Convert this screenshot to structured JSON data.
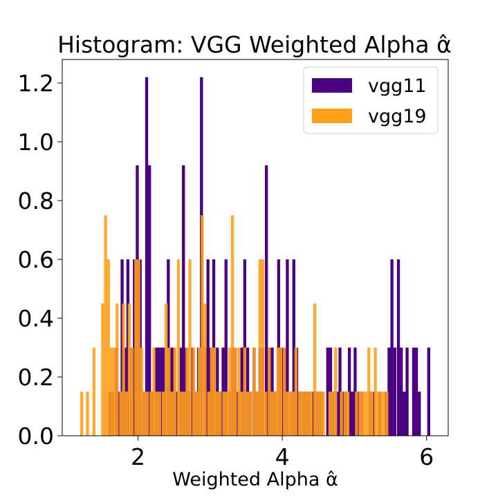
{
  "chart_data": {
    "type": "bar",
    "title": "Histogram: VGG Weighted Alpha α̂",
    "xlabel": "Weighted Alpha α̂",
    "ylabel": "",
    "xlim": [
      0.95,
      6.3
    ],
    "ylim": [
      0,
      1.28
    ],
    "xticks": [
      2,
      4,
      6
    ],
    "yticks": [
      0.0,
      0.2,
      0.4,
      0.6,
      0.8,
      1.0,
      1.2
    ],
    "legend_position": "top-right",
    "series": [
      {
        "name": "vgg11",
        "color": "#4b0082",
        "bars": [
          [
            1.61,
            0.15
          ],
          [
            1.65,
            0.15
          ],
          [
            1.7,
            0.3
          ],
          [
            1.74,
            0.15
          ],
          [
            1.78,
            0.6
          ],
          [
            1.82,
            0.3
          ],
          [
            1.86,
            0.6
          ],
          [
            1.91,
            0.3
          ],
          [
            1.95,
            0.6
          ],
          [
            1.99,
            0.92
          ],
          [
            2.03,
            0.6
          ],
          [
            2.08,
            0.15
          ],
          [
            2.12,
            1.22
          ],
          [
            2.16,
            0.92
          ],
          [
            2.2,
            0.15
          ],
          [
            2.25,
            0.3
          ],
          [
            2.29,
            0.3
          ],
          [
            2.33,
            0.3
          ],
          [
            2.37,
            0.3
          ],
          [
            2.42,
            0.6
          ],
          [
            2.46,
            0.3
          ],
          [
            2.5,
            0.3
          ],
          [
            2.54,
            0.15
          ],
          [
            2.59,
            0.3
          ],
          [
            2.63,
            0.92
          ],
          [
            2.67,
            0.3
          ],
          [
            2.71,
            0.15
          ],
          [
            2.76,
            0.3
          ],
          [
            2.8,
            0.15
          ],
          [
            2.84,
            0.3
          ],
          [
            2.88,
            1.22
          ],
          [
            2.93,
            0.3
          ],
          [
            2.97,
            0.6
          ],
          [
            3.01,
            0.3
          ],
          [
            3.05,
            0.6
          ],
          [
            3.1,
            0.3
          ],
          [
            3.14,
            0.15
          ],
          [
            3.18,
            0.3
          ],
          [
            3.22,
            0.6
          ],
          [
            3.27,
            0.15
          ],
          [
            3.31,
            0.3
          ],
          [
            3.35,
            0.3
          ],
          [
            3.39,
            0.15
          ],
          [
            3.44,
            0.3
          ],
          [
            3.48,
            0.6
          ],
          [
            3.52,
            0.3
          ],
          [
            3.56,
            0.15
          ],
          [
            3.61,
            0.3
          ],
          [
            3.65,
            0.15
          ],
          [
            3.69,
            0.3
          ],
          [
            3.73,
            0.3
          ],
          [
            3.78,
            0.92
          ],
          [
            3.82,
            0.3
          ],
          [
            3.86,
            0.3
          ],
          [
            3.9,
            0.15
          ],
          [
            3.95,
            0.6
          ],
          [
            3.99,
            0.3
          ],
          [
            4.03,
            0.3
          ],
          [
            4.07,
            0.6
          ],
          [
            4.12,
            0.15
          ],
          [
            4.16,
            0.6
          ],
          [
            4.2,
            0.3
          ],
          [
            4.24,
            0.15
          ],
          [
            4.29,
            0.15
          ],
          [
            4.33,
            0.15
          ],
          [
            4.37,
            0.15
          ],
          [
            4.42,
            0.15
          ],
          [
            4.46,
            0.15
          ],
          [
            4.5,
            0.15
          ],
          [
            4.54,
            0.15
          ],
          [
            4.63,
            0.3
          ],
          [
            4.67,
            0.3
          ],
          [
            4.71,
            0.15
          ],
          [
            4.76,
            0.15
          ],
          [
            4.8,
            0.3
          ],
          [
            4.84,
            0.15
          ],
          [
            4.88,
            0.15
          ],
          [
            4.93,
            0.3
          ],
          [
            4.97,
            0.15
          ],
          [
            5.01,
            0.3
          ],
          [
            5.05,
            0.15
          ],
          [
            5.1,
            0.15
          ],
          [
            5.22,
            0.15
          ],
          [
            5.27,
            0.15
          ],
          [
            5.35,
            0.15
          ],
          [
            5.44,
            0.15
          ],
          [
            5.48,
            0.3
          ],
          [
            5.52,
            0.6
          ],
          [
            5.56,
            0.3
          ],
          [
            5.61,
            0.6
          ],
          [
            5.65,
            0.3
          ],
          [
            5.69,
            0.15
          ],
          [
            5.73,
            0.3
          ],
          [
            5.82,
            0.3
          ],
          [
            5.86,
            0.3
          ],
          [
            5.9,
            0.15
          ],
          [
            6.03,
            0.3
          ]
        ]
      },
      {
        "name": "vgg19",
        "color": "#ff9f1c",
        "bars": [
          [
            1.22,
            0.15
          ],
          [
            1.3,
            0.15
          ],
          [
            1.39,
            0.3
          ],
          [
            1.51,
            0.45
          ],
          [
            1.55,
            0.75
          ],
          [
            1.59,
            0.6
          ],
          [
            1.63,
            0.3
          ],
          [
            1.67,
            0.3
          ],
          [
            1.71,
            0.45
          ],
          [
            1.76,
            0.15
          ],
          [
            1.8,
            0.45
          ],
          [
            1.84,
            0.15
          ],
          [
            1.88,
            0.45
          ],
          [
            1.92,
            0.3
          ],
          [
            1.97,
            0.6
          ],
          [
            2.01,
            0.6
          ],
          [
            2.05,
            0.3
          ],
          [
            2.09,
            0.15
          ],
          [
            2.13,
            0.15
          ],
          [
            2.18,
            0.15
          ],
          [
            2.22,
            0.3
          ],
          [
            2.26,
            0.15
          ],
          [
            2.3,
            0.15
          ],
          [
            2.35,
            0.15
          ],
          [
            2.39,
            0.45
          ],
          [
            2.43,
            0.3
          ],
          [
            2.47,
            0.15
          ],
          [
            2.51,
            0.3
          ],
          [
            2.56,
            0.6
          ],
          [
            2.6,
            0.15
          ],
          [
            2.64,
            0.15
          ],
          [
            2.68,
            0.3
          ],
          [
            2.72,
            0.6
          ],
          [
            2.77,
            0.3
          ],
          [
            2.81,
            0.15
          ],
          [
            2.85,
            0.3
          ],
          [
            2.89,
            0.75
          ],
          [
            2.93,
            0.45
          ],
          [
            2.98,
            0.15
          ],
          [
            3.02,
            0.3
          ],
          [
            3.06,
            0.3
          ],
          [
            3.1,
            0.15
          ],
          [
            3.14,
            0.15
          ],
          [
            3.19,
            0.15
          ],
          [
            3.23,
            0.15
          ],
          [
            3.27,
            0.3
          ],
          [
            3.31,
            0.75
          ],
          [
            3.35,
            0.3
          ],
          [
            3.4,
            0.3
          ],
          [
            3.44,
            0.15
          ],
          [
            3.48,
            0.3
          ],
          [
            3.52,
            0.15
          ],
          [
            3.56,
            0.15
          ],
          [
            3.61,
            0.3
          ],
          [
            3.65,
            0.15
          ],
          [
            3.69,
            0.6
          ],
          [
            3.73,
            0.6
          ],
          [
            3.77,
            0.15
          ],
          [
            3.82,
            0.3
          ],
          [
            3.86,
            0.15
          ],
          [
            3.9,
            0.15
          ],
          [
            3.94,
            0.3
          ],
          [
            3.98,
            0.3
          ],
          [
            4.03,
            0.3
          ],
          [
            4.07,
            0.15
          ],
          [
            4.11,
            0.15
          ],
          [
            4.15,
            0.15
          ],
          [
            4.19,
            0.3
          ],
          [
            4.24,
            0.15
          ],
          [
            4.28,
            0.15
          ],
          [
            4.32,
            0.15
          ],
          [
            4.36,
            0.15
          ],
          [
            4.4,
            0.15
          ],
          [
            4.45,
            0.45
          ],
          [
            4.49,
            0.15
          ],
          [
            4.53,
            0.15
          ],
          [
            4.57,
            0.15
          ],
          [
            4.66,
            0.15
          ],
          [
            4.7,
            0.15
          ],
          [
            4.74,
            0.3
          ],
          [
            4.82,
            0.15
          ],
          [
            4.87,
            0.15
          ],
          [
            4.91,
            0.15
          ],
          [
            5.03,
            0.15
          ],
          [
            5.08,
            0.15
          ],
          [
            5.12,
            0.15
          ],
          [
            5.16,
            0.15
          ],
          [
            5.2,
            0.3
          ],
          [
            5.24,
            0.15
          ],
          [
            5.29,
            0.3
          ],
          [
            5.33,
            0.15
          ],
          [
            5.37,
            0.15
          ],
          [
            5.41,
            0.15
          ],
          [
            5.45,
            0.15
          ]
        ]
      }
    ]
  }
}
